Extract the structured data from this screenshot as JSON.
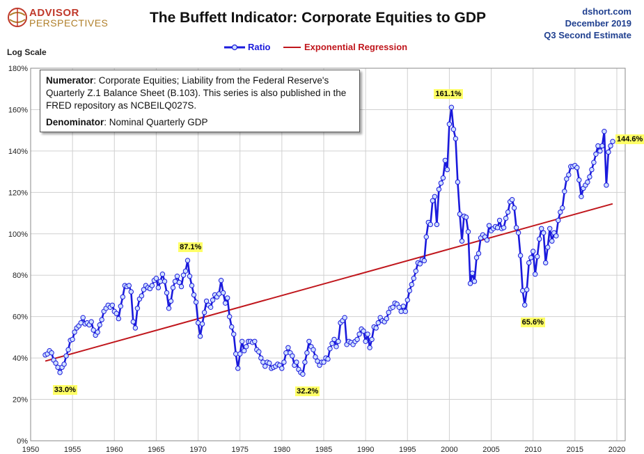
{
  "header": {
    "logo_line1": "ADVISOR",
    "logo_line2": "PERSPECTIVES",
    "title": "The Buffett Indicator: Corporate Equities to GDP",
    "source_line1": "dshort.com",
    "source_line2": "December 2019",
    "source_line3": "Q3 Second Estimate",
    "scale_label": "Log Scale"
  },
  "note": {
    "numerator_label": "Numerator",
    "numerator_text": ": Corporate Equities; Liability from the Federal Reserve's Quarterly Z.1 Balance Sheet (B.103). This series is also published in the FRED repository as NCBEILQ027S.",
    "denominator_label": "Denominator",
    "denominator_text": ": Nominal Quarterly GDP"
  },
  "colors": {
    "ratio": "#1a1adc",
    "regression": "#c0161c",
    "grid": "#d0d0d0",
    "callout": "#ffff66"
  },
  "chart_data": {
    "type": "line",
    "yscale": "log",
    "ylim": [
      0,
      180
    ],
    "yticks": [
      "0%",
      "20%",
      "40%",
      "60%",
      "80%",
      "100%",
      "120%",
      "140%",
      "160%",
      "180%"
    ],
    "xlim": [
      1950,
      2021
    ],
    "xticks": [
      "1950",
      "1955",
      "1960",
      "1965",
      "1970",
      "1975",
      "1980",
      "1985",
      "1990",
      "1995",
      "2000",
      "2005",
      "2010",
      "2015",
      "2020"
    ],
    "legend": {
      "position": "top-center",
      "ratio": "Ratio",
      "regression": "Exponential Regression"
    },
    "regression": {
      "x": [
        1951.75,
        2019.5
      ],
      "y": [
        38.5,
        114.5
      ]
    },
    "annotations": [
      {
        "label": "33.0%",
        "x": 1953.3,
        "y": 33.0
      },
      {
        "label": "87.1%",
        "x": 1968.8,
        "y": 87.1
      },
      {
        "label": "32.2%",
        "x": 1982.6,
        "y": 32.2
      },
      {
        "label": "161.1%",
        "x": 2000.0,
        "y": 161.1
      },
      {
        "label": "65.6%",
        "x": 2009.0,
        "y": 65.6
      },
      {
        "label": "144.6%",
        "x": 2019.5,
        "y": 144.6
      }
    ],
    "series": [
      {
        "name": "Ratio",
        "points": [
          [
            1951.75,
            41.5
          ],
          [
            1952.0,
            42.0
          ],
          [
            1952.25,
            43.5
          ],
          [
            1952.5,
            42.5
          ],
          [
            1952.75,
            39.0
          ],
          [
            1953.0,
            37.5
          ],
          [
            1953.25,
            35.5
          ],
          [
            1953.5,
            33.0
          ],
          [
            1953.75,
            35.5
          ],
          [
            1954.0,
            37.0
          ],
          [
            1954.25,
            41.0
          ],
          [
            1954.5,
            44.0
          ],
          [
            1954.75,
            48.5
          ],
          [
            1955.0,
            49.0
          ],
          [
            1955.25,
            52.5
          ],
          [
            1955.5,
            54.5
          ],
          [
            1955.75,
            55.5
          ],
          [
            1956.0,
            57.0
          ],
          [
            1956.25,
            59.5
          ],
          [
            1956.5,
            56.5
          ],
          [
            1956.75,
            57.0
          ],
          [
            1957.0,
            56.0
          ],
          [
            1957.25,
            57.5
          ],
          [
            1957.5,
            53.5
          ],
          [
            1957.75,
            51.0
          ],
          [
            1958.0,
            52.5
          ],
          [
            1958.25,
            56.0
          ],
          [
            1958.5,
            58.5
          ],
          [
            1958.75,
            62.5
          ],
          [
            1959.0,
            64.0
          ],
          [
            1959.25,
            65.5
          ],
          [
            1959.5,
            64.5
          ],
          [
            1959.75,
            65.5
          ],
          [
            1960.0,
            62.5
          ],
          [
            1960.25,
            61.5
          ],
          [
            1960.5,
            59.0
          ],
          [
            1960.75,
            65.0
          ],
          [
            1961.0,
            69.5
          ],
          [
            1961.25,
            75.0
          ],
          [
            1961.5,
            74.5
          ],
          [
            1961.75,
            75.0
          ],
          [
            1962.0,
            72.0
          ],
          [
            1962.25,
            57.5
          ],
          [
            1962.5,
            54.5
          ],
          [
            1962.75,
            64.0
          ],
          [
            1963.0,
            68.5
          ],
          [
            1963.25,
            70.0
          ],
          [
            1963.5,
            73.0
          ],
          [
            1963.75,
            75.0
          ],
          [
            1964.0,
            74.0
          ],
          [
            1964.25,
            73.5
          ],
          [
            1964.5,
            75.0
          ],
          [
            1964.75,
            77.5
          ],
          [
            1965.0,
            78.5
          ],
          [
            1965.25,
            74.0
          ],
          [
            1965.5,
            77.0
          ],
          [
            1965.75,
            80.5
          ],
          [
            1966.0,
            77.0
          ],
          [
            1966.25,
            71.5
          ],
          [
            1966.5,
            64.0
          ],
          [
            1966.75,
            67.5
          ],
          [
            1967.0,
            74.0
          ],
          [
            1967.25,
            77.0
          ],
          [
            1967.5,
            79.5
          ],
          [
            1967.75,
            76.5
          ],
          [
            1968.0,
            74.5
          ],
          [
            1968.25,
            80.0
          ],
          [
            1968.5,
            82.0
          ],
          [
            1968.75,
            87.1
          ],
          [
            1969.0,
            79.5
          ],
          [
            1969.25,
            75.0
          ],
          [
            1969.5,
            70.5
          ],
          [
            1969.75,
            67.0
          ],
          [
            1970.0,
            57.0
          ],
          [
            1970.25,
            50.5
          ],
          [
            1970.5,
            56.5
          ],
          [
            1970.75,
            62.0
          ],
          [
            1971.0,
            67.5
          ],
          [
            1971.25,
            65.5
          ],
          [
            1971.5,
            64.5
          ],
          [
            1971.75,
            68.0
          ],
          [
            1972.0,
            70.5
          ],
          [
            1972.25,
            69.5
          ],
          [
            1972.5,
            71.0
          ],
          [
            1972.75,
            77.5
          ],
          [
            1973.0,
            71.5
          ],
          [
            1973.25,
            66.5
          ],
          [
            1973.5,
            69.0
          ],
          [
            1973.75,
            60.0
          ],
          [
            1974.0,
            55.0
          ],
          [
            1974.25,
            51.5
          ],
          [
            1974.5,
            42.0
          ],
          [
            1974.75,
            35.0
          ],
          [
            1975.0,
            42.0
          ],
          [
            1975.25,
            48.0
          ],
          [
            1975.5,
            43.5
          ],
          [
            1975.75,
            45.5
          ],
          [
            1976.0,
            48.0
          ],
          [
            1976.25,
            48.0
          ],
          [
            1976.5,
            47.5
          ],
          [
            1976.75,
            48.0
          ],
          [
            1977.0,
            44.0
          ],
          [
            1977.25,
            43.0
          ],
          [
            1977.5,
            40.0
          ],
          [
            1977.75,
            38.0
          ],
          [
            1978.0,
            36.0
          ],
          [
            1978.25,
            38.0
          ],
          [
            1978.5,
            37.5
          ],
          [
            1978.75,
            35.0
          ],
          [
            1979.0,
            35.5
          ],
          [
            1979.25,
            36.0
          ],
          [
            1979.5,
            37.0
          ],
          [
            1979.75,
            36.5
          ],
          [
            1980.0,
            35.0
          ],
          [
            1980.25,
            38.0
          ],
          [
            1980.5,
            42.5
          ],
          [
            1980.75,
            45.0
          ],
          [
            1981.0,
            42.5
          ],
          [
            1981.25,
            41.0
          ],
          [
            1981.5,
            36.5
          ],
          [
            1981.75,
            38.0
          ],
          [
            1982.0,
            34.5
          ],
          [
            1982.25,
            33.0
          ],
          [
            1982.5,
            32.2
          ],
          [
            1982.75,
            38.0
          ],
          [
            1983.0,
            42.5
          ],
          [
            1983.25,
            48.0
          ],
          [
            1983.5,
            45.5
          ],
          [
            1983.75,
            44.0
          ],
          [
            1984.0,
            40.5
          ],
          [
            1984.25,
            38.5
          ],
          [
            1984.5,
            36.5
          ],
          [
            1984.75,
            38.0
          ],
          [
            1985.0,
            38.0
          ],
          [
            1985.25,
            40.0
          ],
          [
            1985.5,
            39.5
          ],
          [
            1985.75,
            44.5
          ],
          [
            1986.0,
            47.0
          ],
          [
            1986.25,
            49.0
          ],
          [
            1986.5,
            45.5
          ],
          [
            1986.75,
            48.0
          ],
          [
            1987.0,
            57.0
          ],
          [
            1987.25,
            58.0
          ],
          [
            1987.5,
            59.5
          ],
          [
            1987.75,
            46.5
          ],
          [
            1988.0,
            48.0
          ],
          [
            1988.25,
            47.5
          ],
          [
            1988.5,
            46.5
          ],
          [
            1988.75,
            48.0
          ],
          [
            1989.0,
            49.0
          ],
          [
            1989.25,
            51.5
          ],
          [
            1989.5,
            54.0
          ],
          [
            1989.75,
            53.0
          ],
          [
            1990.0,
            48.0
          ],
          [
            1990.25,
            51.5
          ],
          [
            1990.5,
            45.0
          ],
          [
            1990.75,
            49.0
          ],
          [
            1991.0,
            55.0
          ],
          [
            1991.25,
            54.5
          ],
          [
            1991.5,
            57.0
          ],
          [
            1991.75,
            59.5
          ],
          [
            1992.0,
            58.0
          ],
          [
            1992.25,
            57.5
          ],
          [
            1992.5,
            59.0
          ],
          [
            1992.75,
            62.0
          ],
          [
            1993.0,
            64.0
          ],
          [
            1993.25,
            64.5
          ],
          [
            1993.5,
            66.5
          ],
          [
            1993.75,
            66.0
          ],
          [
            1994.0,
            64.5
          ],
          [
            1994.25,
            62.5
          ],
          [
            1994.5,
            65.0
          ],
          [
            1994.75,
            62.5
          ],
          [
            1995.0,
            68.0
          ],
          [
            1995.25,
            72.5
          ],
          [
            1995.5,
            75.5
          ],
          [
            1995.75,
            78.5
          ],
          [
            1996.0,
            82.0
          ],
          [
            1996.25,
            86.0
          ],
          [
            1996.5,
            85.5
          ],
          [
            1996.75,
            87.5
          ],
          [
            1997.0,
            87.0
          ],
          [
            1997.25,
            98.5
          ],
          [
            1997.5,
            105.5
          ],
          [
            1997.75,
            104.5
          ],
          [
            1998.0,
            116.0
          ],
          [
            1998.25,
            118.0
          ],
          [
            1998.5,
            104.5
          ],
          [
            1998.75,
            121.5
          ],
          [
            1999.0,
            124.5
          ],
          [
            1999.25,
            127.0
          ],
          [
            1999.5,
            135.5
          ],
          [
            1999.75,
            131.0
          ],
          [
            2000.0,
            153.0
          ],
          [
            2000.25,
            161.1
          ],
          [
            2000.5,
            150.5
          ],
          [
            2000.75,
            146.0
          ],
          [
            2001.0,
            125.0
          ],
          [
            2001.25,
            109.5
          ],
          [
            2001.5,
            96.5
          ],
          [
            2001.75,
            108.5
          ],
          [
            2002.0,
            108.0
          ],
          [
            2002.25,
            101.0
          ],
          [
            2002.5,
            76.0
          ],
          [
            2002.75,
            81.0
          ],
          [
            2003.0,
            77.0
          ],
          [
            2003.25,
            88.5
          ],
          [
            2003.5,
            90.5
          ],
          [
            2003.75,
            98.0
          ],
          [
            2004.0,
            99.5
          ],
          [
            2004.25,
            98.5
          ],
          [
            2004.5,
            97.0
          ],
          [
            2004.75,
            104.0
          ],
          [
            2005.0,
            101.5
          ],
          [
            2005.25,
            102.5
          ],
          [
            2005.5,
            103.5
          ],
          [
            2005.75,
            103.0
          ],
          [
            2006.0,
            106.5
          ],
          [
            2006.25,
            102.5
          ],
          [
            2006.5,
            103.0
          ],
          [
            2006.75,
            107.5
          ],
          [
            2007.0,
            110.5
          ],
          [
            2007.25,
            115.5
          ],
          [
            2007.5,
            116.5
          ],
          [
            2007.75,
            112.5
          ],
          [
            2008.0,
            103.0
          ],
          [
            2008.25,
            100.5
          ],
          [
            2008.5,
            89.5
          ],
          [
            2008.75,
            72.5
          ],
          [
            2009.0,
            65.6
          ],
          [
            2009.25,
            73.0
          ],
          [
            2009.5,
            86.0
          ],
          [
            2009.75,
            88.5
          ],
          [
            2010.0,
            91.5
          ],
          [
            2010.25,
            80.5
          ],
          [
            2010.5,
            89.0
          ],
          [
            2010.75,
            97.5
          ],
          [
            2011.0,
            102.5
          ],
          [
            2011.25,
            100.5
          ],
          [
            2011.5,
            86.0
          ],
          [
            2011.75,
            93.5
          ],
          [
            2012.0,
            102.5
          ],
          [
            2012.25,
            96.5
          ],
          [
            2012.5,
            100.5
          ],
          [
            2012.75,
            99.0
          ],
          [
            2013.0,
            106.5
          ],
          [
            2013.25,
            110.5
          ],
          [
            2013.5,
            112.5
          ],
          [
            2013.75,
            120.5
          ],
          [
            2014.0,
            126.5
          ],
          [
            2014.25,
            128.5
          ],
          [
            2014.5,
            132.5
          ],
          [
            2014.75,
            132.5
          ],
          [
            2015.0,
            133.0
          ],
          [
            2015.25,
            132.0
          ],
          [
            2015.5,
            126.0
          ],
          [
            2015.75,
            118.0
          ],
          [
            2016.0,
            122.0
          ],
          [
            2016.25,
            123.5
          ],
          [
            2016.5,
            125.0
          ],
          [
            2016.75,
            127.5
          ],
          [
            2017.0,
            131.0
          ],
          [
            2017.25,
            134.5
          ],
          [
            2017.5,
            138.5
          ],
          [
            2017.75,
            142.5
          ],
          [
            2018.0,
            140.0
          ],
          [
            2018.25,
            142.5
          ],
          [
            2018.5,
            149.5
          ],
          [
            2018.75,
            123.5
          ],
          [
            2019.0,
            139.5
          ],
          [
            2019.25,
            142.5
          ],
          [
            2019.5,
            144.6
          ]
        ]
      }
    ]
  }
}
